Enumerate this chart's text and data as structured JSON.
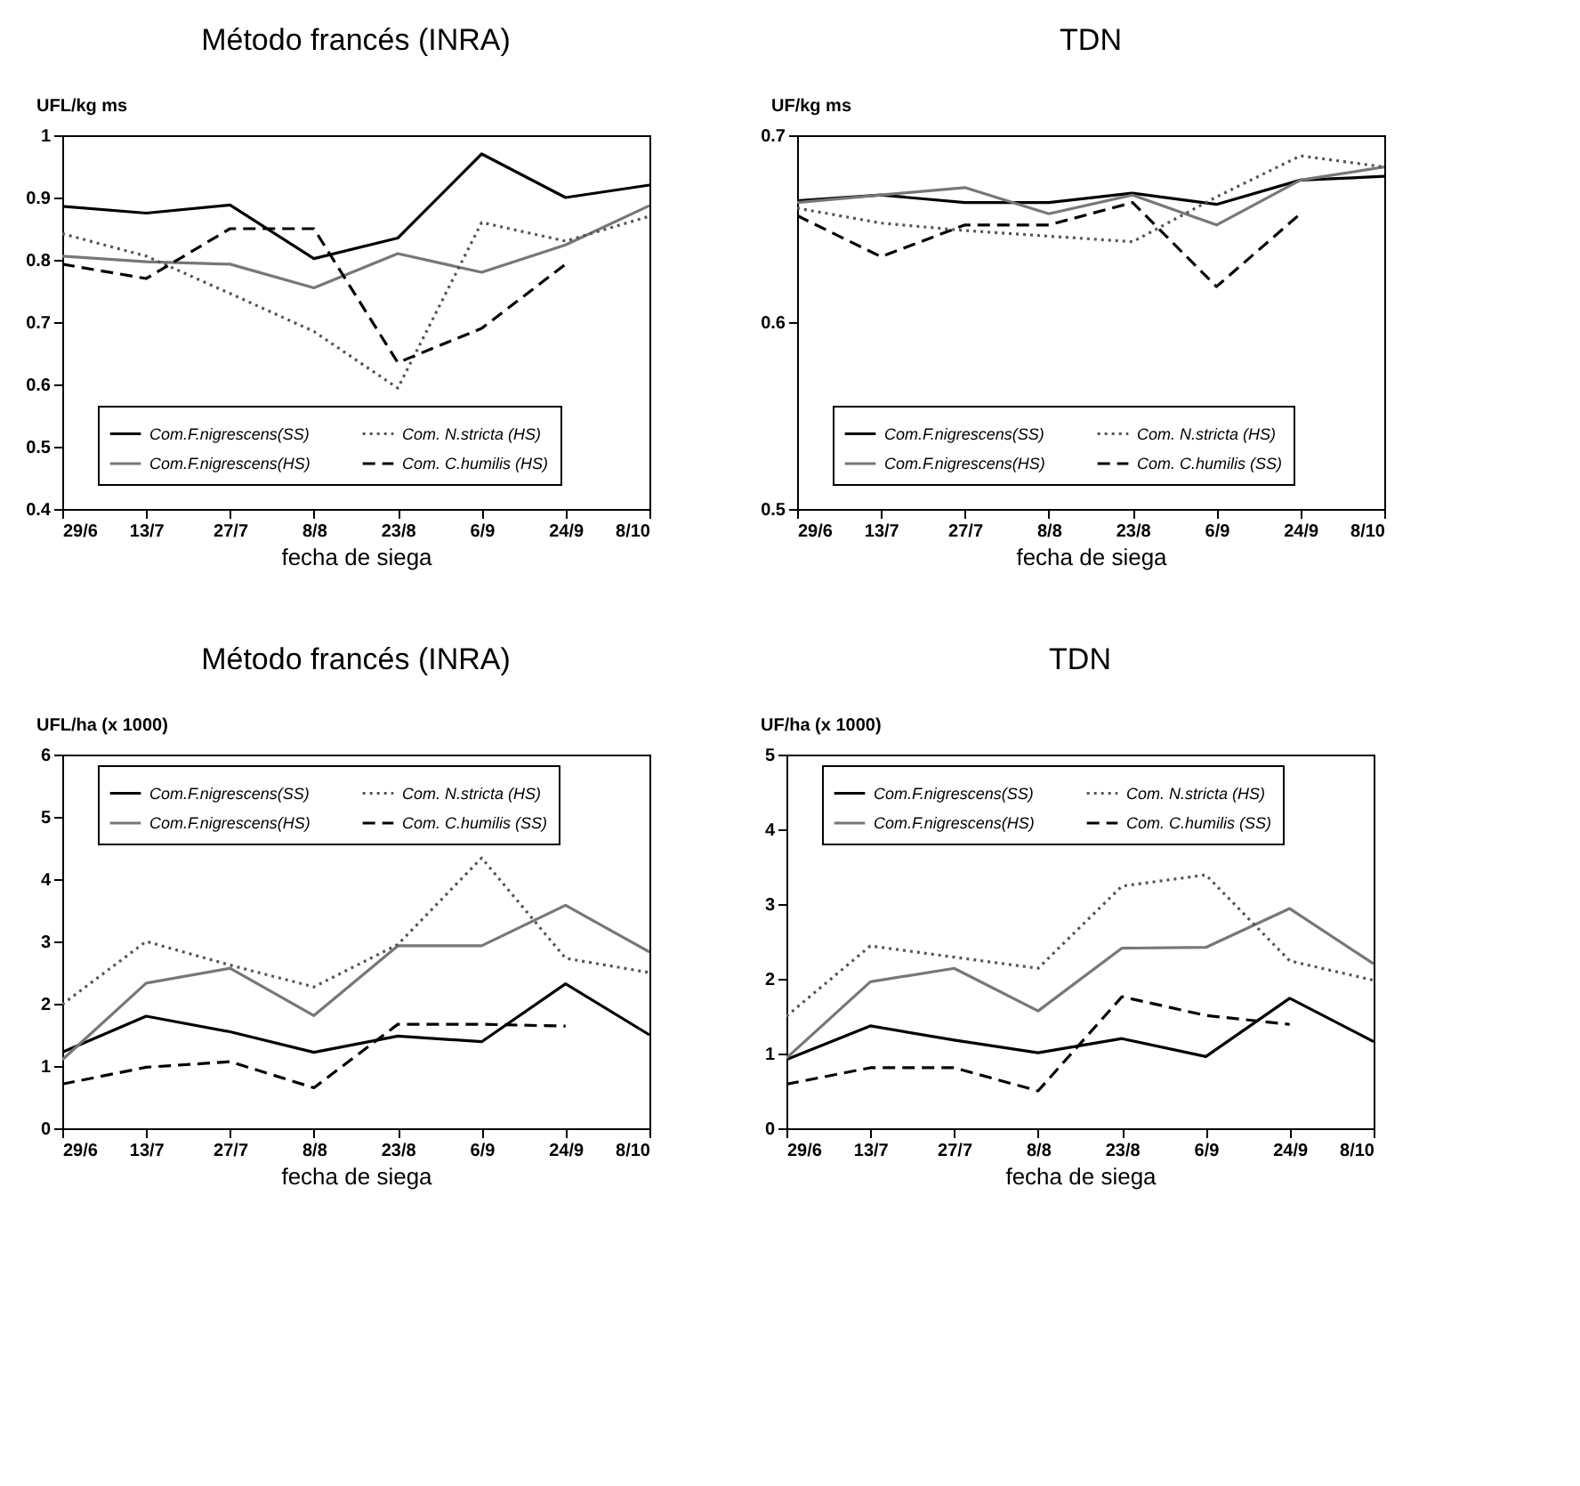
{
  "chart_data": [
    {
      "type": "line",
      "title": "Método francés (INRA)",
      "xlabel": "fecha de siega",
      "ylabel": "UFL/kg ms",
      "categories": [
        "29/6",
        "13/7",
        "27/7",
        "8/8",
        "23/8",
        "6/9",
        "24/9",
        "8/10"
      ],
      "ylim": [
        0.4,
        1
      ],
      "yticks": [
        0.4,
        0.5,
        0.6,
        0.7,
        0.8,
        0.9,
        1
      ],
      "legend": "bottom",
      "grid": false,
      "series": [
        {
          "name": "Com.F.nigrescens(SS)",
          "color": "#000000",
          "line_style": "solid",
          "values": [
            0.886,
            0.875,
            0.888,
            0.802,
            0.835,
            0.97,
            0.9,
            0.92
          ]
        },
        {
          "name": "Com.F.nigrescens(HS)",
          "color": "#777777",
          "line_style": "solid",
          "values": [
            0.806,
            0.797,
            0.793,
            0.755,
            0.81,
            0.78,
            0.824,
            0.887
          ]
        },
        {
          "name": "Com. N.stricta (HS)",
          "color": "#555555",
          "line_style": "dotted",
          "values": [
            0.842,
            0.806,
            0.746,
            0.685,
            0.594,
            0.86,
            0.83,
            0.87
          ]
        },
        {
          "name": "Com. C.humilis (HS)",
          "color": "#000000",
          "line_style": "dashed",
          "values": [
            0.793,
            0.77,
            0.85,
            0.85,
            0.635,
            0.69,
            0.793,
            null
          ]
        }
      ]
    },
    {
      "type": "line",
      "title": "TDN",
      "xlabel": "fecha de siega",
      "ylabel": "UF/kg ms",
      "categories": [
        "29/6",
        "13/7",
        "27/7",
        "8/8",
        "23/8",
        "6/9",
        "24/9",
        "8/10"
      ],
      "ylim": [
        0.5,
        0.7
      ],
      "yticks": [
        0.5,
        0.6,
        0.7
      ],
      "legend": "bottom",
      "grid": false,
      "series": [
        {
          "name": "Com.F.nigrescens(SS)",
          "color": "#000000",
          "line_style": "solid",
          "values": [
            0.665,
            0.668,
            0.664,
            0.664,
            0.669,
            0.663,
            0.676,
            0.678
          ]
        },
        {
          "name": "Com.F.nigrescens(HS)",
          "color": "#777777",
          "line_style": "solid",
          "values": [
            0.664,
            0.668,
            0.672,
            0.658,
            0.668,
            0.652,
            0.676,
            0.683
          ]
        },
        {
          "name": "Com. N.stricta (HS)",
          "color": "#555555",
          "line_style": "dotted",
          "values": [
            0.661,
            0.653,
            0.649,
            0.646,
            0.643,
            0.667,
            0.689,
            0.683
          ]
        },
        {
          "name": "Com. C.humilis (SS)",
          "color": "#000000",
          "line_style": "dashed",
          "values": [
            0.657,
            0.635,
            0.652,
            0.652,
            0.664,
            0.619,
            0.658,
            null
          ]
        }
      ]
    },
    {
      "type": "line",
      "title": "Método francés (INRA)",
      "xlabel": "fecha de siega",
      "ylabel": "UFL/ha (x 1000)",
      "categories": [
        "29/6",
        "13/7",
        "27/7",
        "8/8",
        "23/8",
        "6/9",
        "24/9",
        "8/10"
      ],
      "ylim": [
        0,
        6
      ],
      "yticks": [
        0,
        1,
        2,
        3,
        4,
        5,
        6
      ],
      "legend": "top",
      "grid": false,
      "series": [
        {
          "name": "Com.F.nigrescens(SS)",
          "color": "#000000",
          "line_style": "solid",
          "values": [
            1.22,
            1.8,
            1.55,
            1.22,
            1.48,
            1.39,
            2.32,
            1.5
          ]
        },
        {
          "name": "Com.F.nigrescens(HS)",
          "color": "#777777",
          "line_style": "solid",
          "values": [
            1.1,
            2.33,
            2.57,
            1.81,
            2.93,
            2.93,
            3.58,
            2.83
          ]
        },
        {
          "name": "Com. N.stricta (HS)",
          "color": "#555555",
          "line_style": "dotted",
          "values": [
            1.99,
            3.0,
            2.62,
            2.27,
            2.95,
            4.34,
            2.73,
            2.5
          ]
        },
        {
          "name": "Com. C.humilis (SS)",
          "color": "#000000",
          "line_style": "dashed",
          "values": [
            0.71,
            0.98,
            1.07,
            0.65,
            1.67,
            1.67,
            1.64,
            null
          ]
        }
      ]
    },
    {
      "type": "line",
      "title": "TDN",
      "xlabel": "fecha de siega",
      "ylabel": "UF/ha (x 1000)",
      "categories": [
        "29/6",
        "13/7",
        "27/7",
        "8/8",
        "23/8",
        "6/9",
        "24/9",
        "8/10"
      ],
      "ylim": [
        0,
        5
      ],
      "yticks": [
        0,
        1,
        2,
        3,
        4,
        5
      ],
      "legend": "top",
      "grid": false,
      "series": [
        {
          "name": "Com.F.nigrescens(SS)",
          "color": "#000000",
          "line_style": "solid",
          "values": [
            0.92,
            1.37,
            1.18,
            1.01,
            1.2,
            0.96,
            1.74,
            1.16
          ]
        },
        {
          "name": "Com.F.nigrescens(HS)",
          "color": "#777777",
          "line_style": "solid",
          "values": [
            0.94,
            1.96,
            2.14,
            1.57,
            2.41,
            2.42,
            2.94,
            2.2
          ]
        },
        {
          "name": "Com. N.stricta (HS)",
          "color": "#555555",
          "line_style": "dotted",
          "values": [
            1.5,
            2.44,
            2.29,
            2.14,
            3.24,
            3.39,
            2.24,
            1.98
          ]
        },
        {
          "name": "Com. C.humilis (SS)",
          "color": "#000000",
          "line_style": "dashed",
          "values": [
            0.59,
            0.81,
            0.81,
            0.5,
            1.76,
            1.51,
            1.39,
            null
          ]
        }
      ]
    }
  ]
}
